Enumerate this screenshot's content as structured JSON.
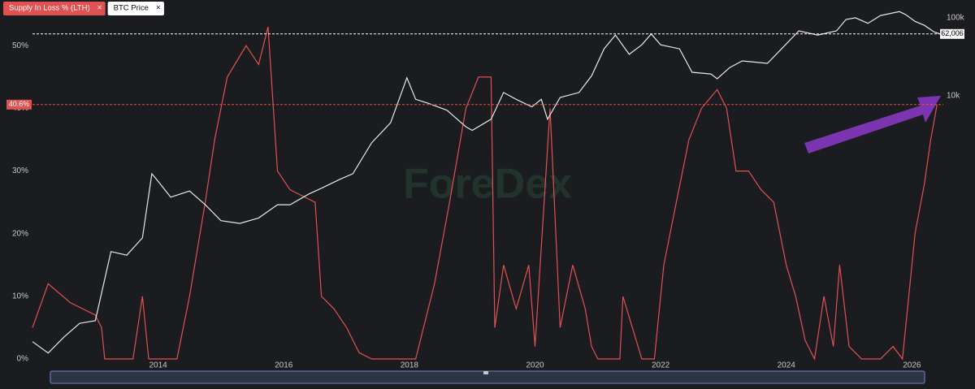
{
  "chart_data": {
    "type": "line",
    "close_label": "×",
    "watermark": "ForeDex",
    "xlim": [
      2012,
      2026.5
    ],
    "xticks": [
      2014,
      2016,
      2018,
      2020,
      2022,
      2024,
      2026
    ],
    "ylim": [
      0,
      56
    ],
    "yticks": [
      {
        "value": 0,
        "label": "0%"
      },
      {
        "value": 10,
        "label": "10%"
      },
      {
        "value": 20,
        "label": "20%"
      },
      {
        "value": 30,
        "label": "30%"
      },
      {
        "value": 40,
        "label": "40%"
      },
      {
        "value": 50,
        "label": "50%"
      }
    ],
    "y2lim": [
      4.2,
      133000
    ],
    "y2_log": true,
    "y2ticks": [
      {
        "value": 10000,
        "label": "10k"
      },
      {
        "value": 100000,
        "label": "100k"
      }
    ],
    "reference_lines": [
      {
        "value": 40.6,
        "label": "40.6%",
        "axis": "y",
        "color": "#e05252"
      },
      {
        "value": 62006,
        "label": "62,006",
        "axis": "y2",
        "color": "#ffffff"
      }
    ],
    "series": [
      {
        "name": "Supply In Loss % (LTH)",
        "color": "#e05252",
        "x": [
          2012.0,
          2012.25,
          2012.6,
          2013.0,
          2013.1,
          2013.15,
          2013.6,
          2013.75,
          2013.85,
          2014.3,
          2014.5,
          2014.75,
          2014.9,
          2015.1,
          2015.4,
          2015.6,
          2015.75,
          2015.9,
          2016.1,
          2016.3,
          2016.5,
          2016.6,
          2016.8,
          2017.0,
          2017.2,
          2017.4,
          2018.1,
          2018.4,
          2018.64,
          2018.9,
          2019.1,
          2019.3,
          2019.36,
          2019.5,
          2019.7,
          2019.9,
          2020.0,
          2020.24,
          2020.4,
          2020.6,
          2020.8,
          2020.9,
          2021.0,
          2021.35,
          2021.4,
          2021.55,
          2021.7,
          2021.9,
          2022.05,
          2022.25,
          2022.45,
          2022.65,
          2022.9,
          2023.05,
          2023.2,
          2023.4,
          2023.6,
          2023.8,
          2024.0,
          2024.15,
          2024.3,
          2024.45,
          2024.6,
          2024.75,
          2024.85,
          2025.0,
          2025.2,
          2025.5,
          2025.7,
          2025.85,
          2025.95,
          2026.05,
          2026.2,
          2026.3,
          2026.4
        ],
        "values": [
          5,
          12,
          9,
          7,
          5,
          0,
          0,
          10,
          0,
          0,
          10,
          25,
          35,
          45,
          50,
          47,
          53,
          30,
          27,
          26,
          25,
          10,
          8,
          5,
          1,
          0,
          0,
          12,
          25,
          40,
          45,
          45,
          5,
          15,
          8,
          15,
          2,
          40,
          5,
          15,
          8,
          2,
          0,
          0,
          10,
          5,
          0,
          0,
          15,
          25,
          35,
          40,
          43,
          40,
          30,
          30,
          27,
          25,
          15,
          10,
          3,
          0,
          10,
          2,
          15,
          2,
          0,
          0,
          2,
          0,
          10,
          20,
          28,
          35,
          40.6
        ]
      },
      {
        "name": "BTC Price",
        "color": "#e8e8e8",
        "axis": "y2",
        "x": [
          2012.0,
          2012.25,
          2012.5,
          2012.75,
          2013.0,
          2013.25,
          2013.5,
          2013.75,
          2013.9,
          2014.0,
          2014.2,
          2014.5,
          2014.75,
          2015.0,
          2015.3,
          2015.6,
          2015.9,
          2016.1,
          2016.4,
          2016.6,
          2016.9,
          2017.1,
          2017.4,
          2017.7,
          2017.96,
          2018.1,
          2018.3,
          2018.6,
          2018.9,
          2019.0,
          2019.3,
          2019.5,
          2019.7,
          2019.95,
          2020.1,
          2020.2,
          2020.4,
          2020.7,
          2020.9,
          2021.1,
          2021.28,
          2021.5,
          2021.7,
          2021.85,
          2022.0,
          2022.3,
          2022.5,
          2022.8,
          2022.9,
          2023.1,
          2023.3,
          2023.7,
          2023.95,
          2024.2,
          2024.5,
          2024.8,
          2024.95,
          2025.1,
          2025.3,
          2025.5,
          2025.8,
          2025.9,
          2026.05,
          2026.2,
          2026.35,
          2026.45
        ],
        "values": [
          7,
          5,
          8,
          12,
          13,
          100,
          90,
          150,
          1000,
          800,
          500,
          600,
          400,
          250,
          230,
          270,
          400,
          400,
          550,
          650,
          850,
          1000,
          2500,
          4500,
          17000,
          9000,
          8000,
          6500,
          4000,
          3600,
          5000,
          11000,
          9000,
          7200,
          9000,
          5000,
          9500,
          11000,
          18000,
          40000,
          60000,
          34000,
          45000,
          62000,
          45000,
          40000,
          20000,
          19000,
          16500,
          23000,
          28000,
          26000,
          42000,
          68000,
          60000,
          68000,
          95000,
          100000,
          85000,
          107000,
          120000,
          110000,
          90000,
          80000,
          66000,
          62000
        ]
      }
    ]
  }
}
